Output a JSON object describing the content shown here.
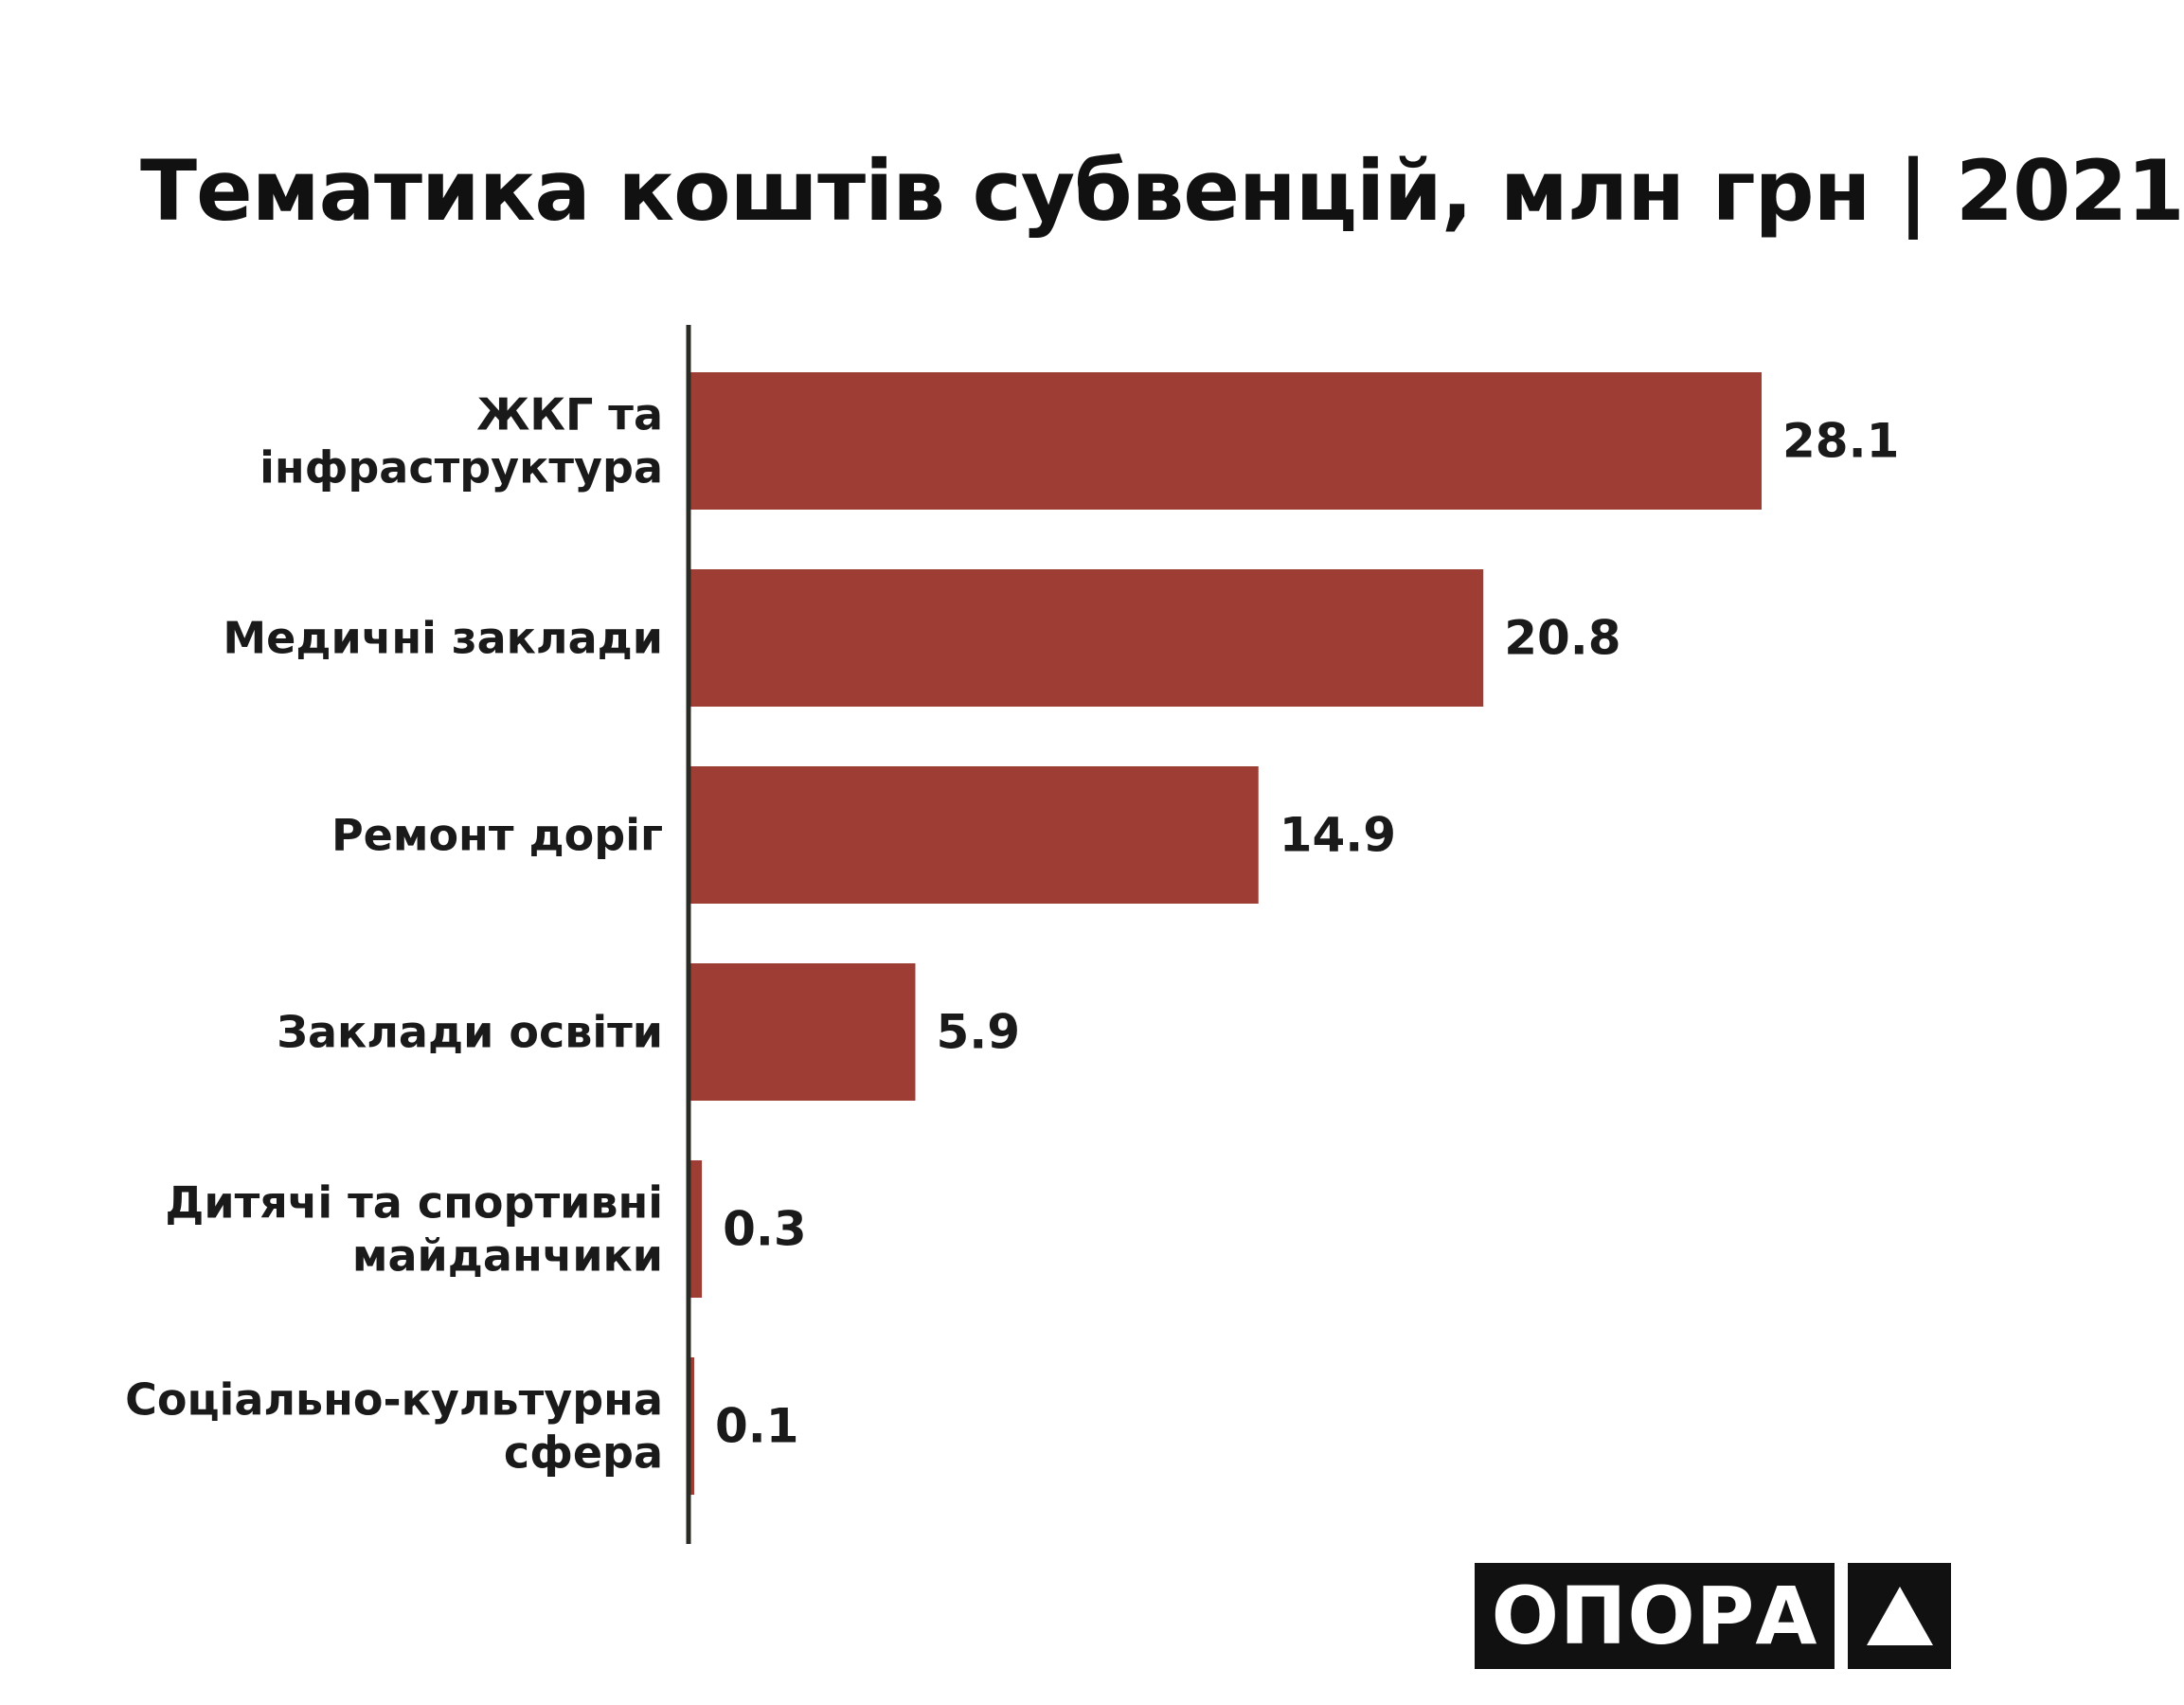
{
  "chart_data": {
    "type": "bar",
    "orientation": "horizontal",
    "title": "Тематика коштів субвенцій, млн грн | 2021",
    "categories": [
      [
        "ЖКГ та",
        "інфраструктура"
      ],
      [
        "Медичні заклади"
      ],
      [
        "Ремонт доріг"
      ],
      [
        "Заклади освіти"
      ],
      [
        "Дитячі та спортивні",
        "майданчики"
      ],
      [
        "Соціально-культурна",
        "сфера"
      ]
    ],
    "values": [
      28.1,
      20.8,
      14.9,
      5.9,
      0.3,
      0.1
    ],
    "value_labels": [
      "28.1",
      "20.8",
      "14.9",
      "5.9",
      "0.3",
      "0.1"
    ],
    "xlim": [
      0,
      30
    ],
    "grid": false,
    "bar_color": "#9e3d34"
  },
  "logo": {
    "text": "ОПОРА",
    "icon": "triangle-icon"
  },
  "colors": {
    "bar": "#9e3d34",
    "axis": "#2b2b26",
    "logo_bg": "#111111"
  }
}
